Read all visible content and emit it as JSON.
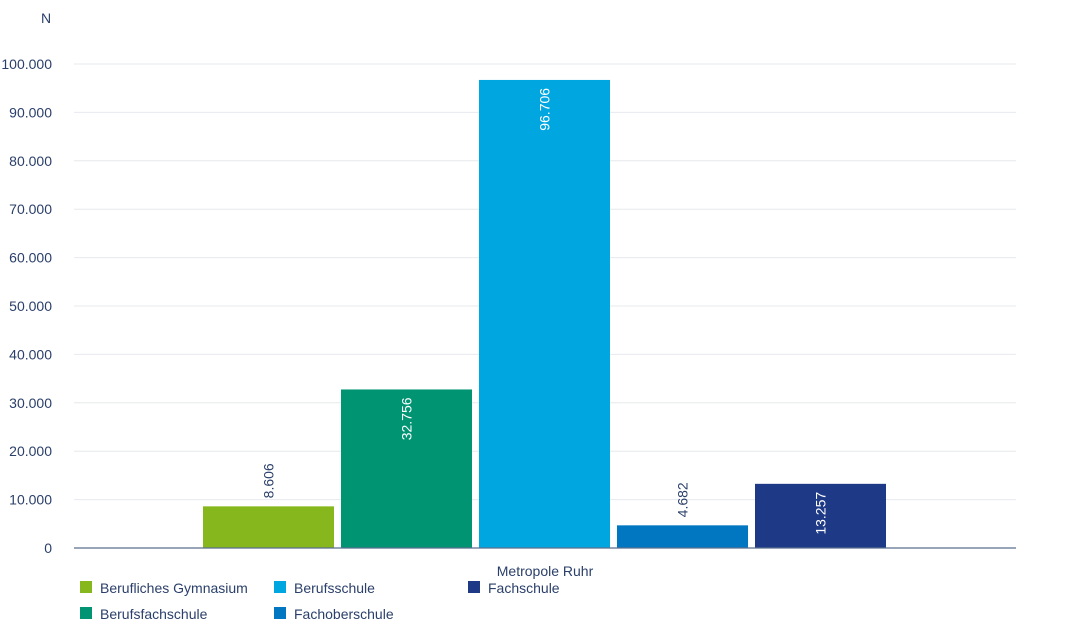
{
  "chart_data": {
    "type": "bar",
    "unit_label": "N",
    "categories": [
      "Metropole Ruhr"
    ],
    "ylim": [
      0,
      100000
    ],
    "yticks": [
      {
        "value": 0,
        "label": "0"
      },
      {
        "value": 10000,
        "label": "10.000"
      },
      {
        "value": 20000,
        "label": "20.000"
      },
      {
        "value": 30000,
        "label": "30.000"
      },
      {
        "value": 40000,
        "label": "40.000"
      },
      {
        "value": 50000,
        "label": "50.000"
      },
      {
        "value": 60000,
        "label": "60.000"
      },
      {
        "value": 70000,
        "label": "70.000"
      },
      {
        "value": 80000,
        "label": "80.000"
      },
      {
        "value": 90000,
        "label": "90.000"
      },
      {
        "value": 100000,
        "label": "100.000"
      }
    ],
    "grid": true,
    "legend_position": "bottom",
    "series": [
      {
        "name": "Berufliches Gymnasium",
        "values": [
          8606
        ],
        "label": "8.606",
        "color": "#86b81e",
        "label_inside": false
      },
      {
        "name": "Berufsfachschule",
        "values": [
          32756
        ],
        "label": "32.756",
        "color": "#009473",
        "label_inside": true
      },
      {
        "name": "Berufsschule",
        "values": [
          96706
        ],
        "label": "96.706",
        "color": "#00a6e0",
        "label_inside": true
      },
      {
        "name": "Fachoberschule",
        "values": [
          4682
        ],
        "label": "4.682",
        "color": "#0077c0",
        "label_inside": false
      },
      {
        "name": "Fachschule",
        "values": [
          13257
        ],
        "label": "13.257",
        "color": "#1e3a86",
        "label_inside": true
      }
    ]
  }
}
